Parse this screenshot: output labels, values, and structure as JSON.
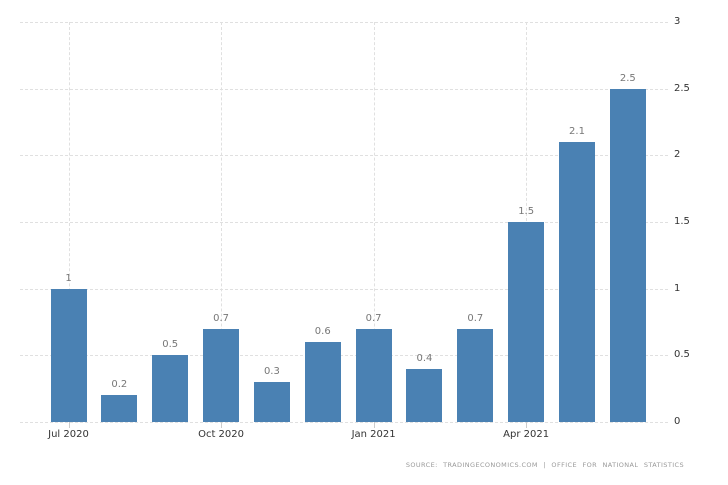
{
  "chart": {
    "footer_source": "SOURCE: TRADINGECONOMICS.COM | OFFICE FOR NATIONAL STATISTICS"
  },
  "chart_data": {
    "type": "bar",
    "values": [
      1,
      0.2,
      0.5,
      0.7,
      0.3,
      0.6,
      0.7,
      0.4,
      0.7,
      1.5,
      2.1,
      2.5
    ],
    "bar_value_labels": [
      "1",
      "0.2",
      "0.5",
      "0.7",
      "0.3",
      "0.6",
      "0.7",
      "0.4",
      "0.7",
      "1.5",
      "2.1",
      "2.5"
    ],
    "x_ticks": [
      {
        "bar_index": 0,
        "label": "Jul 2020"
      },
      {
        "bar_index": 3,
        "label": "Oct 2020"
      },
      {
        "bar_index": 6,
        "label": "Jan 2021"
      },
      {
        "bar_index": 9,
        "label": "Apr 2021"
      }
    ],
    "y_ticks": [
      "0",
      "0.5",
      "1",
      "1.5",
      "2",
      "2.5",
      "3"
    ],
    "ylim": [
      0,
      3
    ],
    "grid": true,
    "legend": false,
    "bar_color": "#4a81b3",
    "gridline_color": "#e0e0e0",
    "value_label_color": "#777777",
    "axis_label_color": "#333333"
  }
}
